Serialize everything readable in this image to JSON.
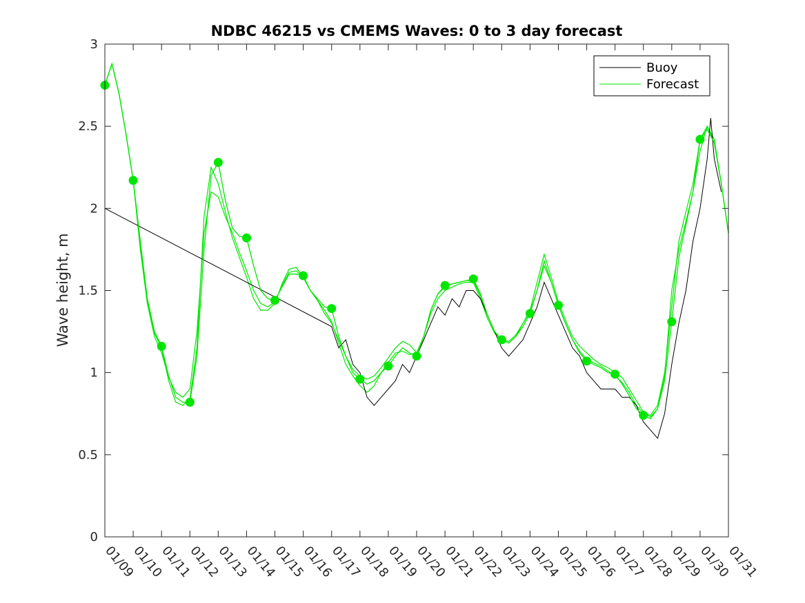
{
  "chart_data": {
    "type": "line",
    "title": "NDBC 46215 vs CMEMS Waves: 0 to 3 day forecast",
    "xlabel": "",
    "ylabel": "Wave height, m",
    "ylim": [
      0,
      3
    ],
    "yticks": [
      "0",
      "0.5",
      "1",
      "1.5",
      "2",
      "2.5",
      "3"
    ],
    "x_ticks": [
      "01/09",
      "01/10",
      "01/11",
      "01/12",
      "01/13",
      "01/14",
      "01/15",
      "01/16",
      "01/17",
      "01/18",
      "01/19",
      "01/20",
      "01/21",
      "01/22",
      "01/23",
      "01/24",
      "01/25",
      "01/26",
      "01/27",
      "01/28",
      "01/29",
      "01/30",
      "01/31"
    ],
    "legend_position": "top-right",
    "grid": false,
    "colors": {
      "buoy": "#000000",
      "forecast": "#00e600",
      "axis": "#262626"
    },
    "series": [
      {
        "name": "Buoy",
        "role": "observed",
        "points": [
          [
            "01/09 00:00",
            2.0
          ],
          [
            "01/17 00:00",
            1.28
          ],
          [
            "01/17 06:00",
            1.15
          ],
          [
            "01/17 12:00",
            1.2
          ],
          [
            "01/17 18:00",
            1.05
          ],
          [
            "01/18 00:00",
            1.0
          ],
          [
            "01/18 06:00",
            0.85
          ],
          [
            "01/18 12:00",
            0.8
          ],
          [
            "01/18 18:00",
            0.85
          ],
          [
            "01/19 00:00",
            0.9
          ],
          [
            "01/19 06:00",
            0.95
          ],
          [
            "01/19 12:00",
            1.05
          ],
          [
            "01/19 18:00",
            1.0
          ],
          [
            "01/20 00:00",
            1.1
          ],
          [
            "01/20 06:00",
            1.2
          ],
          [
            "01/20 12:00",
            1.3
          ],
          [
            "01/20 18:00",
            1.4
          ],
          [
            "01/21 00:00",
            1.35
          ],
          [
            "01/21 06:00",
            1.45
          ],
          [
            "01/21 12:00",
            1.4
          ],
          [
            "01/21 18:00",
            1.5
          ],
          [
            "01/22 00:00",
            1.5
          ],
          [
            "01/22 06:00",
            1.45
          ],
          [
            "01/22 12:00",
            1.35
          ],
          [
            "01/22 18:00",
            1.25
          ],
          [
            "01/23 00:00",
            1.15
          ],
          [
            "01/23 06:00",
            1.1
          ],
          [
            "01/23 12:00",
            1.15
          ],
          [
            "01/23 18:00",
            1.2
          ],
          [
            "01/24 00:00",
            1.3
          ],
          [
            "01/24 06:00",
            1.4
          ],
          [
            "01/24 12:00",
            1.55
          ],
          [
            "01/24 18:00",
            1.45
          ],
          [
            "01/25 00:00",
            1.35
          ],
          [
            "01/25 06:00",
            1.25
          ],
          [
            "01/25 12:00",
            1.15
          ],
          [
            "01/25 18:00",
            1.1
          ],
          [
            "01/26 00:00",
            1.0
          ],
          [
            "01/26 06:00",
            0.95
          ],
          [
            "01/26 12:00",
            0.9
          ],
          [
            "01/26 18:00",
            0.9
          ],
          [
            "01/27 00:00",
            0.9
          ],
          [
            "01/27 06:00",
            0.85
          ],
          [
            "01/27 12:00",
            0.85
          ],
          [
            "01/27 18:00",
            0.8
          ],
          [
            "01/28 00:00",
            0.7
          ],
          [
            "01/28 06:00",
            0.65
          ],
          [
            "01/28 12:00",
            0.6
          ],
          [
            "01/28 18:00",
            0.75
          ],
          [
            "01/29 00:00",
            1.05
          ],
          [
            "01/29 06:00",
            1.3
          ],
          [
            "01/29 12:00",
            1.5
          ],
          [
            "01/29 18:00",
            1.8
          ],
          [
            "01/30 00:00",
            2.0
          ],
          [
            "01/30 06:00",
            2.3
          ],
          [
            "01/30 09:00",
            2.55
          ],
          [
            "01/30 12:00",
            2.3
          ],
          [
            "01/30 18:00",
            2.1
          ]
        ]
      },
      {
        "name": "Forecast",
        "role": "forecast",
        "points": [
          [
            "01/09 00:00",
            2.75
          ],
          [
            "01/09 06:00",
            2.88
          ],
          [
            "01/09 12:00",
            2.7
          ],
          [
            "01/09 18:00",
            2.45
          ],
          [
            "01/10 00:00",
            2.17
          ],
          [
            "01/10 06:00",
            1.8
          ],
          [
            "01/10 12:00",
            1.45
          ],
          [
            "01/10 18:00",
            1.25
          ],
          [
            "01/11 00:00",
            1.16
          ],
          [
            "01/11 06:00",
            0.98
          ],
          [
            "01/11 12:00",
            0.85
          ],
          [
            "01/11 18:00",
            0.82
          ],
          [
            "01/12 00:00",
            0.82
          ],
          [
            "01/12 06:00",
            1.1
          ],
          [
            "01/12 12:00",
            1.75
          ],
          [
            "01/12 18:00",
            2.2
          ],
          [
            "01/13 00:00",
            2.28
          ],
          [
            "01/13 06:00",
            2.05
          ],
          [
            "01/13 12:00",
            1.88
          ],
          [
            "01/13 18:00",
            1.83
          ],
          [
            "01/14 00:00",
            1.82
          ],
          [
            "01/14 06:00",
            1.65
          ],
          [
            "01/14 12:00",
            1.5
          ],
          [
            "01/14 18:00",
            1.45
          ],
          [
            "01/15 00:00",
            1.44
          ],
          [
            "01/15 06:00",
            1.52
          ],
          [
            "01/15 12:00",
            1.6
          ],
          [
            "01/15 18:00",
            1.6
          ],
          [
            "01/16 00:00",
            1.59
          ],
          [
            "01/16 06:00",
            1.5
          ],
          [
            "01/16 12:00",
            1.45
          ],
          [
            "01/16 18:00",
            1.4
          ],
          [
            "01/17 00:00",
            1.39
          ],
          [
            "01/17 06:00",
            1.22
          ],
          [
            "01/17 12:00",
            1.1
          ],
          [
            "01/17 18:00",
            1.0
          ],
          [
            "01/18 00:00",
            0.96
          ],
          [
            "01/18 06:00",
            0.93
          ],
          [
            "01/18 12:00",
            0.95
          ],
          [
            "01/18 18:00",
            1.0
          ],
          [
            "01/19 00:00",
            1.04
          ],
          [
            "01/19 06:00",
            1.1
          ],
          [
            "01/19 12:00",
            1.15
          ],
          [
            "01/19 18:00",
            1.12
          ],
          [
            "01/20 00:00",
            1.1
          ],
          [
            "01/20 06:00",
            1.22
          ],
          [
            "01/20 12:00",
            1.38
          ],
          [
            "01/20 18:00",
            1.48
          ],
          [
            "01/21 00:00",
            1.53
          ],
          [
            "01/21 06:00",
            1.54
          ],
          [
            "01/21 12:00",
            1.55
          ],
          [
            "01/21 18:00",
            1.56
          ],
          [
            "01/22 00:00",
            1.57
          ],
          [
            "01/22 06:00",
            1.48
          ],
          [
            "01/22 12:00",
            1.35
          ],
          [
            "01/22 18:00",
            1.25
          ],
          [
            "01/23 00:00",
            1.2
          ],
          [
            "01/23 06:00",
            1.18
          ],
          [
            "01/23 12:00",
            1.22
          ],
          [
            "01/23 18:00",
            1.28
          ],
          [
            "01/24 00:00",
            1.36
          ],
          [
            "01/24 06:00",
            1.5
          ],
          [
            "01/24 12:00",
            1.68
          ],
          [
            "01/24 18:00",
            1.55
          ],
          [
            "01/25 00:00",
            1.41
          ],
          [
            "01/25 06:00",
            1.3
          ],
          [
            "01/25 12:00",
            1.2
          ],
          [
            "01/25 18:00",
            1.12
          ],
          [
            "01/26 00:00",
            1.07
          ],
          [
            "01/26 06:00",
            1.05
          ],
          [
            "01/26 12:00",
            1.03
          ],
          [
            "01/26 18:00",
            1.0
          ],
          [
            "01/27 00:00",
            0.99
          ],
          [
            "01/27 06:00",
            0.93
          ],
          [
            "01/27 12:00",
            0.86
          ],
          [
            "01/27 18:00",
            0.78
          ],
          [
            "01/28 00:00",
            0.74
          ],
          [
            "01/28 06:00",
            0.72
          ],
          [
            "01/28 12:00",
            0.78
          ],
          [
            "01/28 18:00",
            0.95
          ],
          [
            "01/29 00:00",
            1.31
          ],
          [
            "01/29 06:00",
            1.7
          ],
          [
            "01/29 12:00",
            1.9
          ],
          [
            "01/29 18:00",
            2.1
          ],
          [
            "01/30 00:00",
            2.42
          ],
          [
            "01/30 06:00",
            2.48
          ],
          [
            "01/30 12:00",
            2.4
          ],
          [
            "01/30 18:00",
            2.15
          ],
          [
            "01/31 00:00",
            1.85
          ]
        ]
      }
    ],
    "forecast_ensemble": [
      {
        "values": [
          2.75,
          2.88,
          2.7,
          2.45,
          2.17,
          1.75,
          1.42,
          1.22,
          1.12,
          0.97,
          0.88,
          0.85,
          0.9,
          1.25,
          1.85,
          2.1,
          2.07,
          1.95,
          1.85,
          1.73,
          1.62,
          1.5,
          1.42,
          1.4,
          1.43,
          1.53,
          1.61,
          1.62,
          1.58,
          1.5,
          1.44,
          1.36,
          1.3,
          1.2,
          1.1,
          1.02,
          0.98,
          0.96,
          0.98,
          1.03,
          1.09,
          1.15,
          1.19,
          1.17,
          1.12,
          1.22,
          1.38,
          1.48,
          1.52,
          1.54,
          1.55,
          1.56,
          1.56,
          1.47,
          1.35,
          1.25,
          1.2,
          1.18,
          1.22,
          1.3,
          1.37,
          1.5,
          1.65,
          1.55,
          1.41,
          1.3,
          1.2,
          1.13,
          1.08,
          1.06,
          1.04,
          1.01,
          0.98,
          0.94,
          0.88,
          0.8,
          0.75,
          0.74,
          0.8,
          1.0,
          1.4,
          1.8,
          1.98,
          2.15,
          2.42,
          2.5,
          2.42,
          2.15,
          1.85
        ]
      },
      {
        "values": [
          2.75,
          2.88,
          2.7,
          2.45,
          2.17,
          1.78,
          1.44,
          1.24,
          1.15,
          0.95,
          0.82,
          0.8,
          0.84,
          1.15,
          1.95,
          2.25,
          2.15,
          1.98,
          1.82,
          1.7,
          1.58,
          1.45,
          1.38,
          1.38,
          1.42,
          1.54,
          1.63,
          1.64,
          1.58,
          1.5,
          1.44,
          1.38,
          1.31,
          1.18,
          1.05,
          0.98,
          0.92,
          0.88,
          0.92,
          1.0,
          1.06,
          1.12,
          1.13,
          1.11,
          1.12,
          1.22,
          1.36,
          1.45,
          1.5,
          1.52,
          1.54,
          1.55,
          1.55,
          1.45,
          1.33,
          1.24,
          1.2,
          1.19,
          1.23,
          1.3,
          1.38,
          1.55,
          1.72,
          1.58,
          1.43,
          1.32,
          1.22,
          1.16,
          1.12,
          1.08,
          1.05,
          1.03,
          1.0,
          0.97,
          0.9,
          0.83,
          0.76,
          0.73,
          0.78,
          0.98,
          1.5,
          1.75,
          1.92,
          2.1,
          2.35,
          2.5,
          2.4,
          2.15,
          1.85
        ]
      }
    ],
    "forecast_markers": [
      [
        "01/09 00:00",
        2.75
      ],
      [
        "01/10 00:00",
        2.17
      ],
      [
        "01/11 00:00",
        1.16
      ],
      [
        "01/12 00:00",
        0.82
      ],
      [
        "01/13 00:00",
        2.28
      ],
      [
        "01/14 00:00",
        1.82
      ],
      [
        "01/15 00:00",
        1.44
      ],
      [
        "01/16 00:00",
        1.59
      ],
      [
        "01/17 00:00",
        1.39
      ],
      [
        "01/18 00:00",
        0.96
      ],
      [
        "01/19 00:00",
        1.04
      ],
      [
        "01/20 00:00",
        1.1
      ],
      [
        "01/21 00:00",
        1.53
      ],
      [
        "01/22 00:00",
        1.57
      ],
      [
        "01/23 00:00",
        1.2
      ],
      [
        "01/24 00:00",
        1.36
      ],
      [
        "01/25 00:00",
        1.41
      ],
      [
        "01/26 00:00",
        1.07
      ],
      [
        "01/27 00:00",
        0.99
      ],
      [
        "01/28 00:00",
        0.74
      ],
      [
        "01/29 00:00",
        1.31
      ],
      [
        "01/30 00:00",
        2.42
      ]
    ]
  }
}
